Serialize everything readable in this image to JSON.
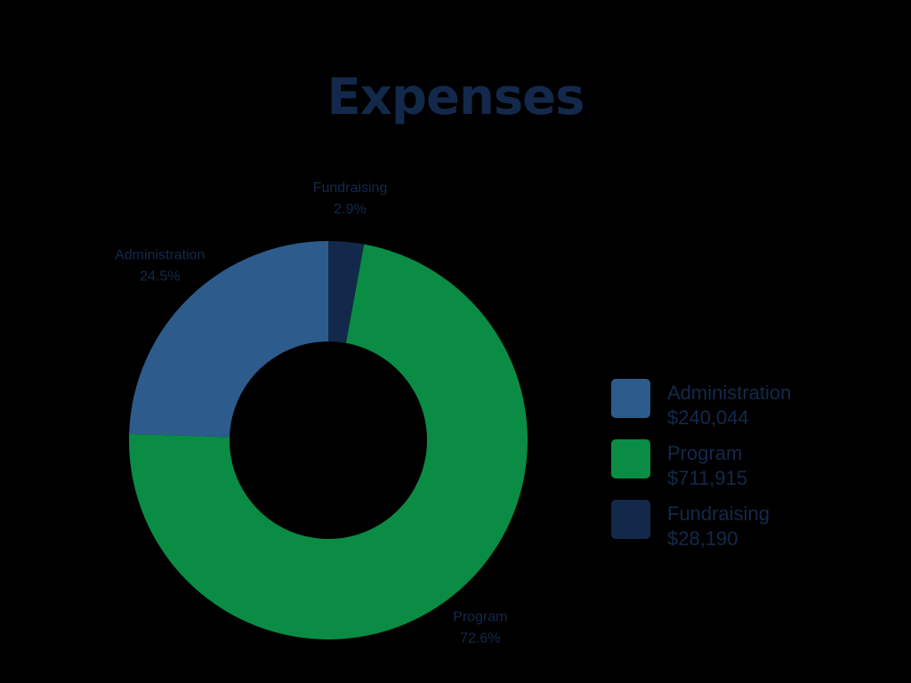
{
  "chart_data": {
    "type": "pie",
    "variant": "donut",
    "title": "Expenses",
    "slices": [
      {
        "name": "Fundraising",
        "value": 28190,
        "value_label": "$28,190",
        "percent_label": "2.9%",
        "color": "#13294b"
      },
      {
        "name": "Program",
        "value": 711915,
        "value_label": "$711,915",
        "percent_label": "72.6%",
        "color": "#0a8c44"
      },
      {
        "name": "Administration",
        "value": 240044,
        "value_label": "$240,044",
        "percent_label": "24.5%",
        "color": "#2d5b8c"
      }
    ],
    "legend": {
      "position": "right",
      "order": [
        "Administration",
        "Program",
        "Fundraising"
      ]
    },
    "start_angle_deg": 0,
    "direction": "clockwise"
  },
  "colors": {
    "background": "#000000",
    "text": "#13294b"
  }
}
